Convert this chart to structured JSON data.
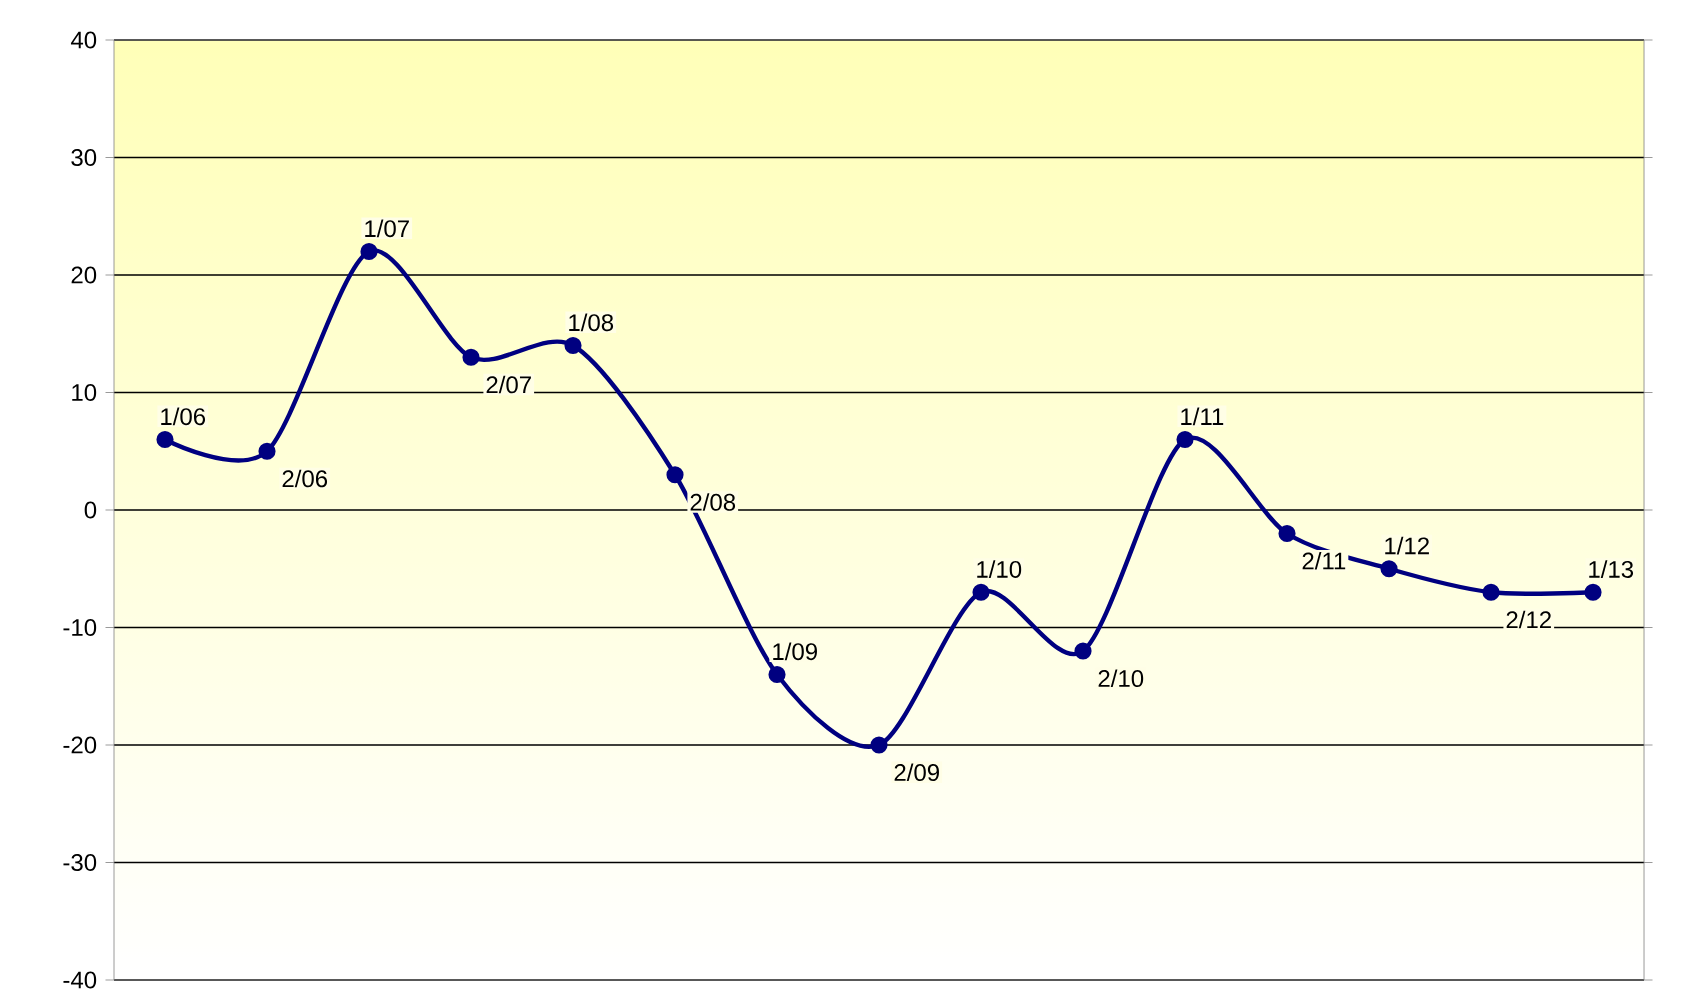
{
  "chart_data": {
    "type": "line",
    "categories": [
      null,
      null,
      null,
      null,
      null,
      null,
      null,
      null,
      null,
      null,
      null,
      null,
      null,
      null,
      null
    ],
    "series": [
      {
        "color": "#000080",
        "values": [
          6,
          5,
          22,
          13,
          14,
          3,
          -14,
          -20,
          -7,
          -12,
          6,
          -2,
          -5,
          -7,
          -7
        ]
      }
    ],
    "annotations": [
      "1/06",
      "2/06",
      "1/07",
      "2/07",
      "1/08",
      "2/08",
      "1/09",
      "2/09",
      "1/10",
      "2/10",
      "1/11",
      "2/11",
      "1/12",
      "2/12",
      "1/13"
    ],
    "ylim": [
      -40,
      40
    ],
    "yticks": [
      -40,
      -30,
      -20,
      -10,
      0,
      10,
      20,
      30,
      40
    ],
    "grid": "y",
    "marker": "circle",
    "line_style": "solid"
  }
}
